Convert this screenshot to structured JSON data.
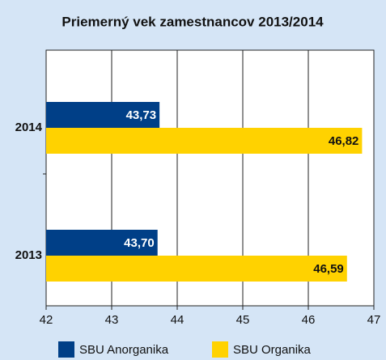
{
  "chart_data": {
    "type": "bar",
    "orientation": "horizontal",
    "title": "Priemerný vek zamestnancov 2013/2014",
    "categories": [
      "2014",
      "2013"
    ],
    "series": [
      {
        "name": "SBU Anorganika",
        "color": "#003f87",
        "values": [
          43.73,
          43.7
        ],
        "value_labels": [
          "43,73",
          "43,70"
        ]
      },
      {
        "name": "SBU Organika",
        "color": "#ffd200",
        "values": [
          46.82,
          46.59
        ],
        "value_labels": [
          "46,82",
          "46,59"
        ]
      }
    ],
    "xlim": [
      42,
      47
    ],
    "xticks": [
      42,
      43,
      44,
      45,
      46,
      47
    ],
    "grid": true,
    "legend": "bottom"
  }
}
